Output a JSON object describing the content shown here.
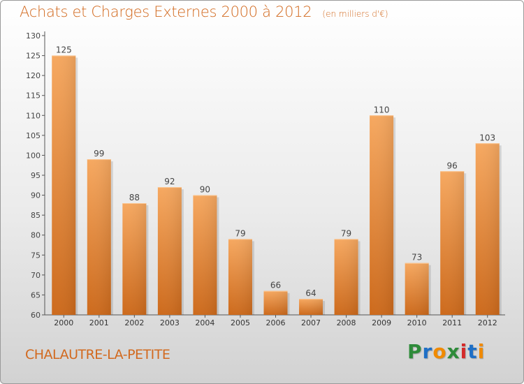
{
  "header": {
    "title": "Achats et Charges Externes 2000 à 2012",
    "unit": "(en milliers d'€)"
  },
  "footer": {
    "commune": "CHALAUTRE-LA-PETITE",
    "brand": "Proxiti",
    "brand_colors": [
      "#2e8b3a",
      "#1e6fc6",
      "#f08a00",
      "#2e8b3a",
      "#d42a2a",
      "#1e6fc6",
      "#f08a00"
    ]
  },
  "chart_data": {
    "type": "bar",
    "title": "Achats et Charges Externes 2000 à 2012",
    "subtitle": "(en milliers d'€)",
    "xlabel": "",
    "ylabel": "",
    "categories": [
      "2000",
      "2001",
      "2002",
      "2003",
      "2004",
      "2005",
      "2006",
      "2007",
      "2008",
      "2009",
      "2010",
      "2011",
      "2012"
    ],
    "values": [
      125,
      99,
      88,
      92,
      90,
      79,
      66,
      64,
      79,
      110,
      73,
      96,
      103
    ],
    "ylim": [
      60,
      130
    ],
    "yticks": [
      60,
      65,
      70,
      75,
      80,
      85,
      90,
      95,
      100,
      105,
      110,
      115,
      120,
      125,
      130
    ],
    "grid": false,
    "bar_color": "#f0923a"
  }
}
